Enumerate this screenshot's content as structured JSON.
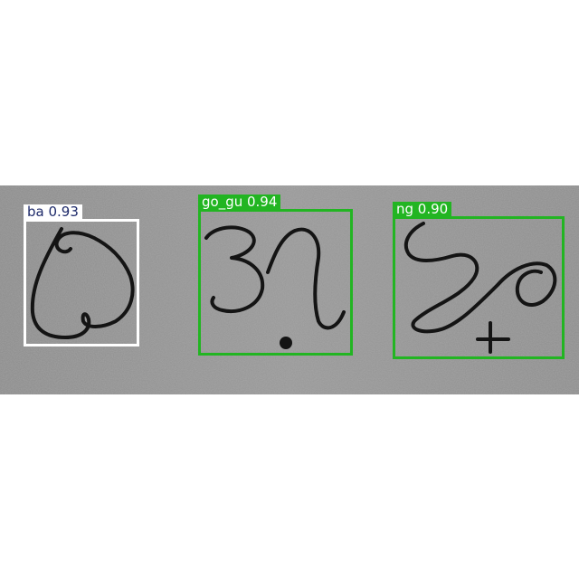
{
  "detections": [
    {
      "label": "ba 0.93",
      "class": "ba",
      "confidence": 0.93,
      "color": "#ffffff",
      "text_color": "#1e2a6a"
    },
    {
      "label": "go_gu 0.94",
      "class": "go_gu",
      "confidence": 0.94,
      "color": "#22b522",
      "text_color": "#ffffff"
    },
    {
      "label": "ng 0.90",
      "class": "ng",
      "confidence": 0.9,
      "color": "#22b522",
      "text_color": "#ffffff"
    }
  ]
}
